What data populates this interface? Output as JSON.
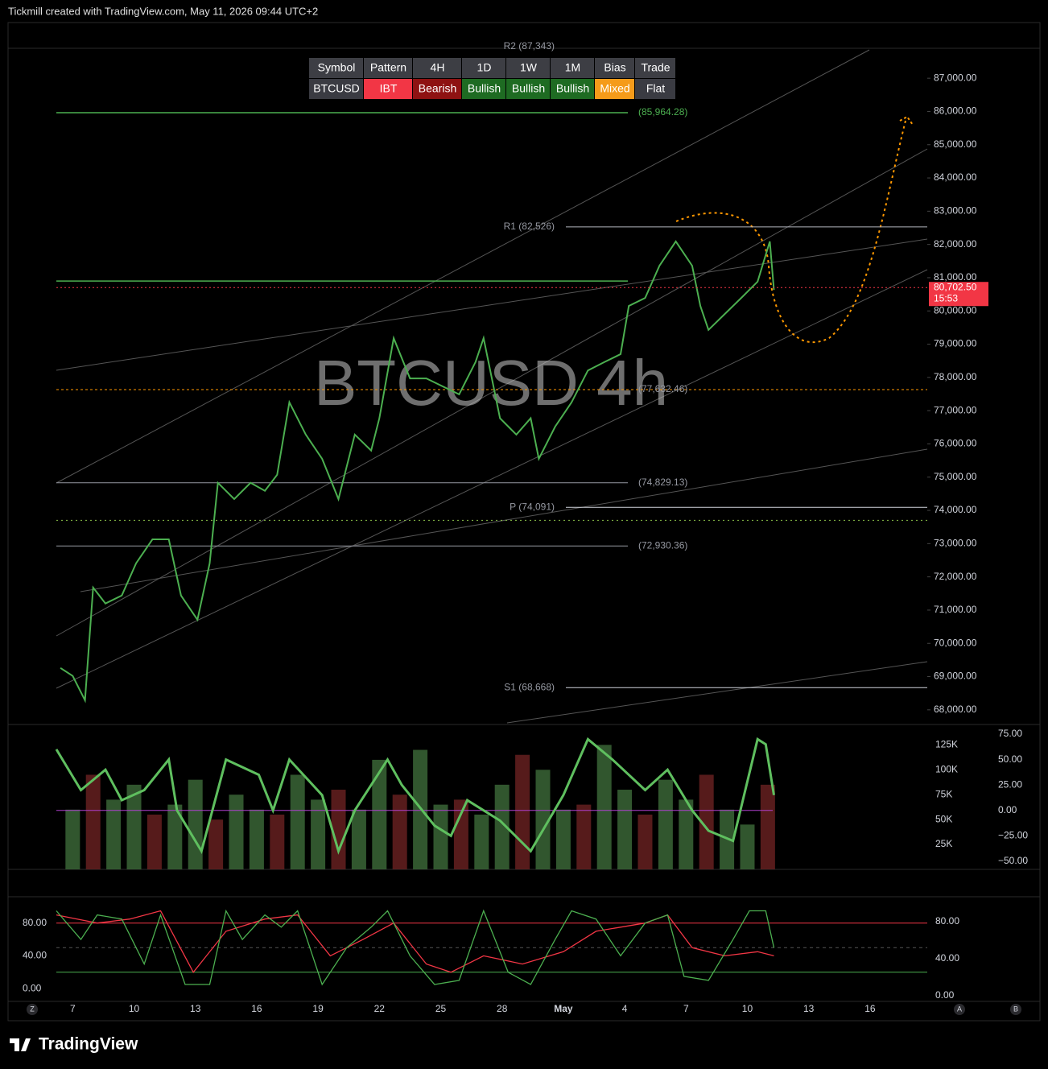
{
  "header": "Tickmill created with TradingView.com, May 11, 2026 09:44 UTC+2",
  "footer": "TradingView",
  "axis_buttons": [
    "Z",
    "A",
    "B"
  ],
  "signal_table": {
    "header": [
      "Symbol",
      "Pattern",
      "4H",
      "1D",
      "1W",
      "1M",
      "Bias",
      "Trade"
    ],
    "row": [
      "BTCUSD",
      "IBT",
      "Bearish",
      "Bullish",
      "Bullish",
      "Bullish",
      "Mixed",
      "Flat"
    ],
    "row_colors": [
      "#3a3b42",
      "#f23645",
      "#8e1212",
      "#1e6b22",
      "#1e6b22",
      "#1e6b22",
      "#f59b1a",
      "#3a3b42"
    ]
  },
  "chart_data": [
    {
      "type": "line",
      "title": "BTCUSD 4h",
      "xlim": [
        -0.8,
        41.8
      ],
      "ylim": [
        67560,
        87900
      ],
      "yticks": [
        {
          "value": 68000,
          "label": "68,000.00"
        },
        {
          "value": 69000,
          "label": "69,000.00"
        },
        {
          "value": 70000,
          "label": "70,000.00"
        },
        {
          "value": 71000,
          "label": "71,000.00"
        },
        {
          "value": 72000,
          "label": "72,000.00"
        },
        {
          "value": 73000,
          "label": "73,000.00"
        },
        {
          "value": 74000,
          "label": "74,000.00"
        },
        {
          "value": 75000,
          "label": "75,000.00"
        },
        {
          "value": 76000,
          "label": "76,000.00"
        },
        {
          "value": 77000,
          "label": "77,000.00"
        },
        {
          "value": 78000,
          "label": "78,000.00"
        },
        {
          "value": 79000,
          "label": "79,000.00"
        },
        {
          "value": 80000,
          "label": "80,000.00"
        },
        {
          "value": 81000,
          "label": "81,000.00"
        },
        {
          "value": 82000,
          "label": "82,000.00"
        },
        {
          "value": 83000,
          "label": "83,000.00"
        },
        {
          "value": 84000,
          "label": "84,000.00"
        },
        {
          "value": 85000,
          "label": "85,000.00"
        },
        {
          "value": 86000,
          "label": "86,000.00"
        },
        {
          "value": 87000,
          "label": "87,000.00"
        }
      ],
      "series": [
        {
          "name": "BTCUSD",
          "color": "#4caf50",
          "x": [
            -0.6,
            0,
            0.6,
            1.0,
            1.6,
            2.4,
            3.1,
            3.9,
            4.7,
            5.3,
            6.1,
            6.7,
            7.1,
            7.9,
            8.7,
            9.4,
            10.0,
            10.6,
            11.4,
            12.2,
            13.0,
            13.8,
            14.6,
            15.0,
            15.7,
            16.5,
            17.3,
            18.1,
            18.9,
            19.7,
            20.1,
            20.9,
            21.7,
            22.4,
            22.8,
            23.6,
            24.4,
            25.2,
            26.0,
            26.8,
            27.2,
            28.0,
            28.7,
            29.5,
            30.3,
            30.7,
            31.1,
            31.9,
            32.7,
            33.5,
            34.1,
            34.3
          ],
          "values": [
            69260,
            69020,
            68290,
            71680,
            71200,
            71440,
            72410,
            73130,
            73130,
            71440,
            70710,
            72410,
            74830,
            74340,
            74830,
            74590,
            75070,
            77250,
            76280,
            75550,
            74340,
            76280,
            75800,
            76770,
            79180,
            77970,
            77970,
            77730,
            77490,
            78460,
            79180,
            76770,
            76280,
            76770,
            75550,
            76520,
            77250,
            78210,
            78460,
            78700,
            80150,
            80390,
            81360,
            82090,
            81360,
            80150,
            79430,
            79910,
            80390,
            80880,
            82090,
            80630
          ]
        }
      ],
      "levels": [
        {
          "label": "R2 (87,343)",
          "value": 87343,
          "color": "#787b86"
        },
        {
          "label": "(85,964.28)",
          "value": 85964.28,
          "color": "#4caf50"
        },
        {
          "label": "R1 (82,526)",
          "value": 82526,
          "color": "#b2b5be"
        },
        {
          "value": 80900,
          "color": "#4caf50"
        },
        {
          "label": "(77,632.46)",
          "value": 77632.46,
          "color": "#ff9800"
        },
        {
          "label": "(74,829.13)",
          "value": 74829.13,
          "color": "#9598a1"
        },
        {
          "label": "P (74,091)",
          "value": 74091,
          "color": "#d1d4dc"
        },
        {
          "value": 73700,
          "color": "#8bc34a"
        },
        {
          "label": "(72,930.36)",
          "value": 72930.36,
          "color": "#9598a1"
        },
        {
          "label": "S1 (68,668)",
          "value": 68668,
          "color": "#d1d4dc"
        }
      ],
      "last_price": {
        "value": 80702.5,
        "label": "80,702.50",
        "countdown": "15:53",
        "color": "#f23645"
      }
    },
    {
      "type": "line",
      "xlim": [
        -0.8,
        41.8
      ],
      "ylim": [
        -58,
        84.5
      ],
      "yticks": [
        {
          "value": 75,
          "label": "75.00"
        },
        {
          "value": 50,
          "label": "50.00"
        },
        {
          "value": 25,
          "label": "25.00"
        },
        {
          "value": 0,
          "label": "0.00"
        },
        {
          "value": -25,
          "label": "−25.00"
        },
        {
          "value": -50,
          "label": "−50.00"
        }
      ],
      "y2lim": [
        0,
        145500
      ],
      "y2ticks": [
        {
          "value": 25000,
          "label": "25K"
        },
        {
          "value": 50000,
          "label": "50K"
        },
        {
          "value": 75000,
          "label": "75K"
        },
        {
          "value": 100000,
          "label": "100K"
        },
        {
          "value": 125000,
          "label": "125K"
        }
      ],
      "series": [
        {
          "name": "Oscillator",
          "color": "#5fbf5f",
          "x": [
            -0.8,
            0.4,
            1.6,
            2.4,
            3.5,
            4.7,
            5.1,
            6.3,
            7.5,
            9.1,
            9.8,
            10.6,
            12.2,
            13.0,
            13.8,
            15.4,
            16.1,
            17.7,
            18.5,
            19.3,
            20.9,
            22.4,
            24.0,
            25.2,
            26.4,
            28.0,
            29.1,
            30.3,
            31.1,
            32.3,
            33.5,
            33.9,
            34.3
          ],
          "values": [
            60,
            20,
            40,
            10,
            20,
            50,
            0,
            -40,
            50,
            35,
            0,
            50,
            15,
            -40,
            0,
            50,
            25,
            -15,
            -25,
            10,
            -10,
            -40,
            15,
            70,
            50,
            20,
            40,
            0,
            -20,
            -30,
            70,
            65,
            15
          ]
        },
        {
          "name": "Volume",
          "axis": "y2",
          "color": "#3d6b3a",
          "x": [
            0,
            1,
            2,
            3,
            4,
            5,
            6,
            7,
            8,
            9,
            10,
            11,
            12,
            13,
            14,
            15,
            16,
            17,
            18,
            19,
            20,
            21,
            22,
            23,
            24,
            25,
            26,
            27,
            28,
            29,
            30,
            31,
            32,
            33,
            34
          ],
          "values": [
            60000,
            95000,
            70000,
            85000,
            55000,
            65000,
            90000,
            50000,
            75000,
            60000,
            55000,
            95000,
            70000,
            80000,
            60000,
            110000,
            75000,
            120000,
            65000,
            70000,
            55000,
            85000,
            115000,
            100000,
            60000,
            65000,
            125000,
            80000,
            55000,
            90000,
            70000,
            95000,
            60000,
            45000,
            85000
          ]
        }
      ]
    },
    {
      "type": "line",
      "xlim": [
        -0.8,
        41.8
      ],
      "xticks": [
        {
          "value": 0,
          "label": "7"
        },
        {
          "value": 3,
          "label": "10"
        },
        {
          "value": 6,
          "label": "13"
        },
        {
          "value": 9,
          "label": "16"
        },
        {
          "value": 12,
          "label": "19"
        },
        {
          "value": 15,
          "label": "22"
        },
        {
          "value": 18,
          "label": "25"
        },
        {
          "value": 21,
          "label": "28"
        },
        {
          "value": 24,
          "label": "May"
        },
        {
          "value": 27,
          "label": "4"
        },
        {
          "value": 30,
          "label": "7"
        },
        {
          "value": 33,
          "label": "10"
        },
        {
          "value": 36,
          "label": "13"
        },
        {
          "value": 39,
          "label": "16"
        }
      ],
      "ylim": [
        -16.6,
        111.2
      ],
      "yticks": [
        {
          "value": 0,
          "label": "0.00"
        },
        {
          "value": 40,
          "label": "40.00"
        },
        {
          "value": 80,
          "label": "80.00"
        }
      ],
      "y2lim": [
        -7,
        106
      ],
      "y2ticks": [
        {
          "value": 0,
          "label": "0.00"
        },
        {
          "value": 40,
          "label": "40.00"
        },
        {
          "value": 80,
          "label": "80.00"
        }
      ],
      "bands": [
        {
          "value": 80,
          "color": "#f23645"
        },
        {
          "value": 50,
          "color": "#555"
        },
        {
          "value": 20,
          "color": "#4caf50"
        }
      ],
      "series": [
        {
          "name": "%K",
          "color": "#4caf50",
          "x": [
            -0.8,
            0.4,
            1.2,
            2.4,
            3.5,
            4.3,
            5.5,
            6.7,
            7.5,
            8.3,
            9.4,
            10.2,
            11.0,
            12.2,
            13.4,
            14.6,
            15.4,
            16.5,
            17.7,
            18.9,
            20.1,
            21.3,
            22.4,
            23.6,
            24.4,
            25.6,
            26.8,
            28.0,
            29.1,
            29.9,
            31.1,
            32.3,
            33.1,
            33.9,
            34.3
          ],
          "values": [
            95,
            60,
            90,
            85,
            30,
            90,
            5,
            5,
            95,
            60,
            90,
            75,
            95,
            5,
            50,
            75,
            95,
            40,
            5,
            10,
            95,
            20,
            5,
            60,
            95,
            85,
            40,
            80,
            90,
            15,
            10,
            60,
            95,
            95,
            50
          ]
        },
        {
          "name": "%D",
          "color": "#f23645",
          "x": [
            -0.8,
            1.2,
            2.8,
            4.3,
            5.9,
            7.5,
            9.4,
            11.0,
            12.6,
            14.2,
            15.7,
            17.3,
            18.5,
            20.1,
            22.0,
            24.0,
            25.6,
            28.0,
            29.1,
            30.3,
            31.9,
            33.5,
            34.3
          ],
          "values": [
            90,
            80,
            85,
            95,
            20,
            70,
            85,
            90,
            40,
            60,
            80,
            30,
            20,
            40,
            30,
            45,
            70,
            80,
            90,
            50,
            40,
            45,
            40
          ]
        }
      ]
    }
  ]
}
